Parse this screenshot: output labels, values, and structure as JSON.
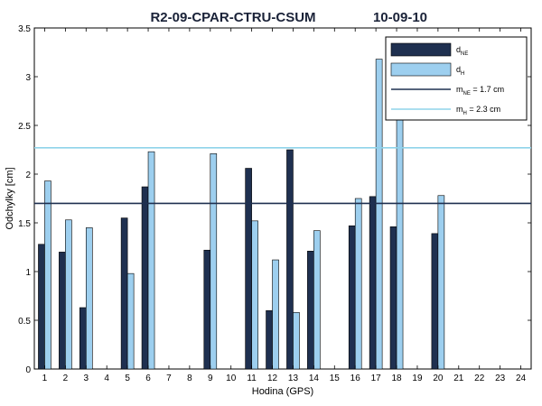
{
  "chart_data": {
    "type": "bar",
    "title": "R2-09-CPAR-CTRU-CSUM",
    "date": "10-09-10",
    "xlabel": "Hodina (GPS)",
    "ylabel": "Odchylky [cm]",
    "xlim": [
      0.5,
      24.5
    ],
    "ylim": [
      0,
      3.5
    ],
    "yticks": [
      0,
      0.5,
      1,
      1.5,
      2,
      2.5,
      3,
      3.5
    ],
    "ytick_labels": [
      "0",
      "0.5",
      "1",
      "1.5",
      "2",
      "2.5",
      "3",
      "3.5"
    ],
    "categories": [
      "1",
      "2",
      "3",
      "4",
      "5",
      "6",
      "7",
      "8",
      "9",
      "10",
      "11",
      "12",
      "13",
      "14",
      "15",
      "16",
      "17",
      "18",
      "19",
      "20",
      "21",
      "22",
      "23",
      "24"
    ],
    "series": [
      {
        "name": "dNE",
        "legend_main": "d",
        "legend_sub": "NE",
        "color": "#1f3050",
        "values": [
          1.28,
          1.2,
          0.63,
          null,
          1.55,
          1.87,
          null,
          null,
          1.22,
          null,
          2.06,
          0.6,
          2.25,
          1.21,
          null,
          1.47,
          1.77,
          1.46,
          null,
          1.39,
          null,
          null,
          null,
          null
        ]
      },
      {
        "name": "dH",
        "legend_main": "d",
        "legend_sub": "H",
        "color": "#9dcfef",
        "values": [
          1.93,
          1.53,
          1.45,
          null,
          0.98,
          2.23,
          null,
          null,
          2.21,
          null,
          1.52,
          1.12,
          0.58,
          1.42,
          null,
          1.75,
          3.18,
          2.9,
          null,
          1.78,
          null,
          null,
          null,
          null
        ]
      }
    ],
    "lines": [
      {
        "name": "mNE = 1.7 cm",
        "legend_main": "m",
        "legend_sub": "NE",
        "legend_rest": " = 1.7 cm",
        "value": 1.7,
        "color": "#1f3050"
      },
      {
        "name": "mH = 2.3 cm",
        "legend_main": "m",
        "legend_sub": "H",
        "legend_rest": " = 2.3 cm",
        "value": 2.27,
        "color": "#8fd3ea"
      }
    ],
    "grid": false,
    "legend_position": "top-right"
  }
}
